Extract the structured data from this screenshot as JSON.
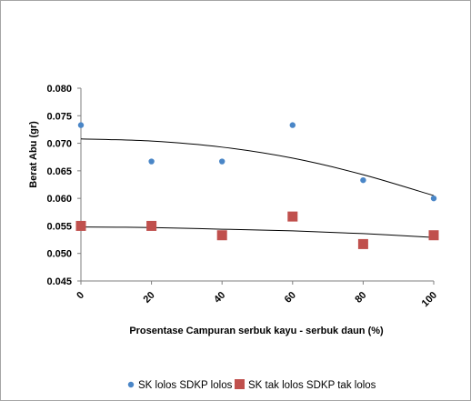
{
  "chart_data": {
    "type": "scatter",
    "xlabel": "Prosentase Campuran serbuk kayu - serbuk daun (%)",
    "ylabel": "Berat Abu (gr)",
    "xlim": [
      0,
      100
    ],
    "ylim": [
      0.045,
      0.08
    ],
    "x_ticks": [
      "0",
      "20",
      "40",
      "60",
      "80",
      "100"
    ],
    "y_ticks": [
      "0.045",
      "0.050",
      "0.055",
      "0.060",
      "0.065",
      "0.070",
      "0.075",
      "0.080"
    ],
    "x_tick_rotation": "-45deg",
    "gridlines": false,
    "legend_position": "bottom",
    "series": [
      {
        "name": "SK lolos SDKP lolos",
        "marker": "circle",
        "color": "#4a86c7",
        "x": [
          0,
          20,
          40,
          60,
          80,
          100
        ],
        "y": [
          0.0733,
          0.0667,
          0.0667,
          0.0733,
          0.0633,
          0.06
        ],
        "trendline": "polynomial order 2",
        "trendline_values": [
          0.0708,
          0.0704,
          0.0693,
          0.0673,
          0.0643,
          0.0605
        ]
      },
      {
        "name": "SK tak lolos SDKP tak lolos",
        "marker": "square",
        "color": "#c0504d",
        "x": [
          0,
          20,
          40,
          60,
          80,
          100
        ],
        "y": [
          0.055,
          0.055,
          0.0533,
          0.0567,
          0.0517,
          0.0533
        ],
        "trendline": "polynomial order 2",
        "trendline_values": [
          0.0548,
          0.0547,
          0.0544,
          0.0541,
          0.0536,
          0.0529
        ]
      }
    ]
  }
}
